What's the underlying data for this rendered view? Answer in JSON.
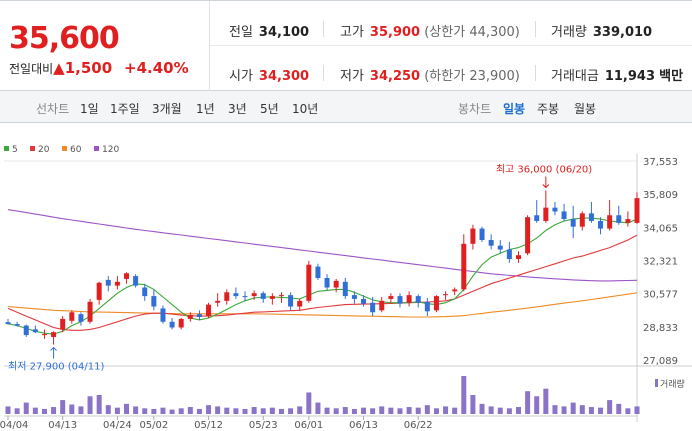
{
  "quote": {
    "price": "35,600",
    "change_label": "전일대비",
    "change_arrow": "▲",
    "change_value": "1,500",
    "change_pct": "+4.40%",
    "prev_close": {
      "label": "전일",
      "value": "34,100"
    },
    "high": {
      "label": "고가",
      "value": "35,900",
      "extra": "(상한가 44,300)"
    },
    "volume": {
      "label": "거래량",
      "value": "339,010"
    },
    "open": {
      "label": "시가",
      "value": "34,300"
    },
    "low": {
      "label": "저가",
      "value": "34,250",
      "extra": "(하한가 23,900)"
    },
    "amount": {
      "label": "거래대금",
      "value": "11,943",
      "unit": "백만"
    }
  },
  "period_tabs": {
    "label": "선차트",
    "items": [
      "1일",
      "1주일",
      "3개월",
      "1년",
      "3년",
      "5년",
      "10년"
    ],
    "selected": null
  },
  "candle_tabs": {
    "label": "봉차트",
    "items": [
      "일봉",
      "주봉",
      "월봉"
    ],
    "selected": "일봉"
  },
  "colors": {
    "up": "#e02020",
    "down": "#2f6fd6",
    "ma5": "#3aa93a",
    "ma20": "#e0393c",
    "ma60": "#f08a24",
    "ma120": "#9c55c8",
    "volume": "#8b73c8"
  },
  "chart_data": {
    "type": "candlestick",
    "legend": [
      "5",
      "20",
      "60",
      "120"
    ],
    "y_ticks": [
      "37,553",
      "35,809",
      "34,065",
      "32,321",
      "30,577",
      "28,833",
      "27,089"
    ],
    "ylim": [
      27089,
      37553
    ],
    "x_ticks": [
      {
        "label": "04/04",
        "i": 0
      },
      {
        "label": "04/13",
        "i": 6
      },
      {
        "label": "04/24",
        "i": 12
      },
      {
        "label": "05/02",
        "i": 16
      },
      {
        "label": "05/12",
        "i": 22
      },
      {
        "label": "05/23",
        "i": 28
      },
      {
        "label": "06/01",
        "i": 33
      },
      {
        "label": "06/13",
        "i": 39
      },
      {
        "label": "06/22",
        "i": 45
      }
    ],
    "annotation_high": "최고 36,000 (06/20)",
    "annotation_low": "최저 27,900 (04/11)",
    "volume_label": "거래량",
    "candles": [
      {
        "o": 29080,
        "h": 29250,
        "l": 28950,
        "c": 28980
      },
      {
        "o": 28980,
        "h": 29100,
        "l": 28850,
        "c": 28900
      },
      {
        "o": 28900,
        "h": 28950,
        "l": 28300,
        "c": 28400
      },
      {
        "o": 28700,
        "h": 28900,
        "l": 28500,
        "c": 28550
      },
      {
        "o": 28400,
        "h": 28700,
        "l": 28200,
        "c": 28450
      },
      {
        "o": 28300,
        "h": 28600,
        "l": 27900,
        "c": 28550
      },
      {
        "o": 28700,
        "h": 29400,
        "l": 28550,
        "c": 29250
      },
      {
        "o": 29150,
        "h": 29700,
        "l": 29000,
        "c": 29600
      },
      {
        "o": 29500,
        "h": 29600,
        "l": 28900,
        "c": 29100
      },
      {
        "o": 29100,
        "h": 30300,
        "l": 29000,
        "c": 30150
      },
      {
        "o": 30250,
        "h": 31200,
        "l": 30000,
        "c": 31150
      },
      {
        "o": 31300,
        "h": 31500,
        "l": 30700,
        "c": 31000
      },
      {
        "o": 31000,
        "h": 31500,
        "l": 30800,
        "c": 31200
      },
      {
        "o": 31350,
        "h": 31700,
        "l": 31100,
        "c": 31650
      },
      {
        "o": 31500,
        "h": 31600,
        "l": 30900,
        "c": 31000
      },
      {
        "o": 30900,
        "h": 31100,
        "l": 30200,
        "c": 30450
      },
      {
        "o": 30450,
        "h": 30800,
        "l": 29700,
        "c": 29900
      },
      {
        "o": 29800,
        "h": 29950,
        "l": 29000,
        "c": 29100
      },
      {
        "o": 29100,
        "h": 29300,
        "l": 28700,
        "c": 28800
      },
      {
        "o": 28800,
        "h": 29300,
        "l": 28700,
        "c": 29250
      },
      {
        "o": 29250,
        "h": 29600,
        "l": 29100,
        "c": 29450
      },
      {
        "o": 29500,
        "h": 29700,
        "l": 29200,
        "c": 29350
      },
      {
        "o": 29400,
        "h": 30100,
        "l": 29300,
        "c": 30000
      },
      {
        "o": 30100,
        "h": 30600,
        "l": 29900,
        "c": 30200
      },
      {
        "o": 30200,
        "h": 30800,
        "l": 30000,
        "c": 30650
      },
      {
        "o": 30600,
        "h": 30900,
        "l": 30300,
        "c": 30450
      },
      {
        "o": 30450,
        "h": 30700,
        "l": 30200,
        "c": 30400
      },
      {
        "o": 30450,
        "h": 30750,
        "l": 30250,
        "c": 30600
      },
      {
        "o": 30600,
        "h": 30700,
        "l": 30100,
        "c": 30300
      },
      {
        "o": 30300,
        "h": 30600,
        "l": 30000,
        "c": 30450
      },
      {
        "o": 30450,
        "h": 30650,
        "l": 30100,
        "c": 30500
      },
      {
        "o": 30500,
        "h": 30650,
        "l": 29700,
        "c": 29900
      },
      {
        "o": 29900,
        "h": 30300,
        "l": 29700,
        "c": 30200
      },
      {
        "o": 30200,
        "h": 32300,
        "l": 30100,
        "c": 32100
      },
      {
        "o": 32000,
        "h": 32150,
        "l": 31300,
        "c": 31400
      },
      {
        "o": 31400,
        "h": 31600,
        "l": 30750,
        "c": 30900
      },
      {
        "o": 30900,
        "h": 31350,
        "l": 30650,
        "c": 31250
      },
      {
        "o": 31200,
        "h": 31400,
        "l": 30300,
        "c": 30450
      },
      {
        "o": 30500,
        "h": 30700,
        "l": 30050,
        "c": 30300
      },
      {
        "o": 30300,
        "h": 30500,
        "l": 29900,
        "c": 30050
      },
      {
        "o": 30100,
        "h": 30400,
        "l": 29400,
        "c": 29600
      },
      {
        "o": 29700,
        "h": 30400,
        "l": 29600,
        "c": 30200
      },
      {
        "o": 30300,
        "h": 30600,
        "l": 30100,
        "c": 30450
      },
      {
        "o": 30450,
        "h": 30600,
        "l": 29850,
        "c": 30050
      },
      {
        "o": 30100,
        "h": 30700,
        "l": 29900,
        "c": 30500
      },
      {
        "o": 30450,
        "h": 30550,
        "l": 29850,
        "c": 30100
      },
      {
        "o": 30150,
        "h": 30350,
        "l": 29400,
        "c": 29650
      },
      {
        "o": 29700,
        "h": 30500,
        "l": 29600,
        "c": 30450
      },
      {
        "o": 30500,
        "h": 30700,
        "l": 30250,
        "c": 30550
      },
      {
        "o": 30700,
        "h": 30900,
        "l": 30500,
        "c": 30800
      },
      {
        "o": 30800,
        "h": 33700,
        "l": 30700,
        "c": 33200
      },
      {
        "o": 33200,
        "h": 34200,
        "l": 32900,
        "c": 34000
      },
      {
        "o": 34000,
        "h": 34100,
        "l": 33300,
        "c": 33400
      },
      {
        "o": 33400,
        "h": 33700,
        "l": 32900,
        "c": 33100
      },
      {
        "o": 33100,
        "h": 33400,
        "l": 32700,
        "c": 32900
      },
      {
        "o": 32900,
        "h": 33300,
        "l": 32200,
        "c": 32400
      },
      {
        "o": 32400,
        "h": 32800,
        "l": 32200,
        "c": 32600
      },
      {
        "o": 32700,
        "h": 34700,
        "l": 32600,
        "c": 34600
      },
      {
        "o": 34700,
        "h": 35500,
        "l": 34300,
        "c": 34400
      },
      {
        "o": 34400,
        "h": 36000,
        "l": 34300,
        "c": 35100
      },
      {
        "o": 35100,
        "h": 35400,
        "l": 34700,
        "c": 34900
      },
      {
        "o": 34900,
        "h": 35300,
        "l": 34400,
        "c": 34500
      },
      {
        "o": 34500,
        "h": 35200,
        "l": 33500,
        "c": 34100
      },
      {
        "o": 34100,
        "h": 34900,
        "l": 33900,
        "c": 34800
      },
      {
        "o": 34800,
        "h": 35400,
        "l": 34300,
        "c": 34400
      },
      {
        "o": 34400,
        "h": 34600,
        "l": 33700,
        "c": 34000
      },
      {
        "o": 34000,
        "h": 35500,
        "l": 33900,
        "c": 34700
      },
      {
        "o": 34700,
        "h": 35200,
        "l": 34200,
        "c": 34300
      },
      {
        "o": 34300,
        "h": 34900,
        "l": 34100,
        "c": 34500
      },
      {
        "o": 34300,
        "h": 35900,
        "l": 34250,
        "c": 35600
      }
    ],
    "volumes": [
      12,
      9,
      18,
      10,
      8,
      11,
      22,
      15,
      12,
      28,
      30,
      14,
      10,
      16,
      12,
      9,
      8,
      10,
      7,
      9,
      11,
      8,
      14,
      12,
      10,
      9,
      8,
      11,
      9,
      10,
      8,
      9,
      12,
      34,
      18,
      10,
      9,
      11,
      8,
      10,
      9,
      12,
      10,
      9,
      11,
      10,
      14,
      9,
      12,
      10,
      60,
      30,
      16,
      12,
      10,
      9,
      11,
      36,
      28,
      40,
      14,
      12,
      18,
      14,
      11,
      10,
      22,
      16,
      9,
      12
    ],
    "ma120": [
      35000,
      34920,
      34840,
      34760,
      34680,
      34600,
      34520,
      34450,
      34380,
      34310,
      34240,
      34170,
      34100,
      34030,
      33960,
      33900,
      33840,
      33780,
      33720,
      33660,
      33600,
      33540,
      33480,
      33420,
      33360,
      33300,
      33240,
      33180,
      33120,
      33060,
      33000,
      32940,
      32880,
      32820,
      32760,
      32700,
      32640,
      32580,
      32520,
      32460,
      32400,
      32340,
      32280,
      32220,
      32160,
      32100,
      32040,
      31980,
      31920,
      31860,
      31800,
      31740,
      31680,
      31620,
      31580,
      31540,
      31500,
      31460,
      31420,
      31390,
      31360,
      31330,
      31300,
      31280,
      31260,
      31250,
      31250,
      31260,
      31270,
      31280
    ],
    "ma60": [
      29900,
      29860,
      29820,
      29780,
      29740,
      29700,
      29680,
      29660,
      29640,
      29620,
      29610,
      29600,
      29590,
      29580,
      29570,
      29560,
      29550,
      29540,
      29530,
      29520,
      29520,
      29520,
      29520,
      29520,
      29520,
      29520,
      29520,
      29520,
      29510,
      29500,
      29490,
      29480,
      29470,
      29460,
      29450,
      29440,
      29430,
      29420,
      29410,
      29400,
      29390,
      29380,
      29370,
      29360,
      29350,
      29350,
      29350,
      29360,
      29370,
      29390,
      29420,
      29480,
      29540,
      29600,
      29650,
      29700,
      29760,
      29820,
      29880,
      29950,
      30020,
      30080,
      30140,
      30200,
      30270,
      30340,
      30410,
      30480,
      30550,
      30620
    ],
    "ma20": [
      29800,
      29600,
      29400,
      29200,
      29000,
      28800,
      28700,
      28650,
      28650,
      28700,
      28800,
      28950,
      29100,
      29250,
      29400,
      29500,
      29550,
      29550,
      29500,
      29450,
      29420,
      29400,
      29400,
      29420,
      29450,
      29500,
      29550,
      29600,
      29620,
      29640,
      29660,
      29680,
      29700,
      29780,
      29850,
      29900,
      29950,
      30000,
      30020,
      30030,
      30040,
      30050,
      30060,
      30080,
      30100,
      30120,
      30140,
      30160,
      30200,
      30300,
      30500,
      30700,
      30900,
      31100,
      31250,
      31400,
      31550,
      31700,
      31850,
      32000,
      32150,
      32300,
      32450,
      32550,
      32700,
      32850,
      33000,
      33200,
      33400,
      33650
    ],
    "ma5": [
      29000,
      28900,
      28750,
      28600,
      28500,
      28450,
      28600,
      28900,
      29100,
      29400,
      29800,
      30200,
      30600,
      30900,
      31100,
      31050,
      30800,
      30400,
      30000,
      29600,
      29300,
      29200,
      29300,
      29500,
      29750,
      30000,
      30200,
      30350,
      30400,
      30400,
      30380,
      30350,
      30300,
      30500,
      30700,
      30750,
      30800,
      30800,
      30650,
      30450,
      30250,
      30150,
      30100,
      30100,
      30100,
      30150,
      30050,
      30000,
      30100,
      30300,
      30800,
      31500,
      32100,
      32500,
      32700,
      32900,
      33000,
      33200,
      33500,
      33900,
      34200,
      34400,
      34500,
      34550,
      34550,
      34500,
      34400,
      34350,
      34300,
      34500
    ]
  }
}
